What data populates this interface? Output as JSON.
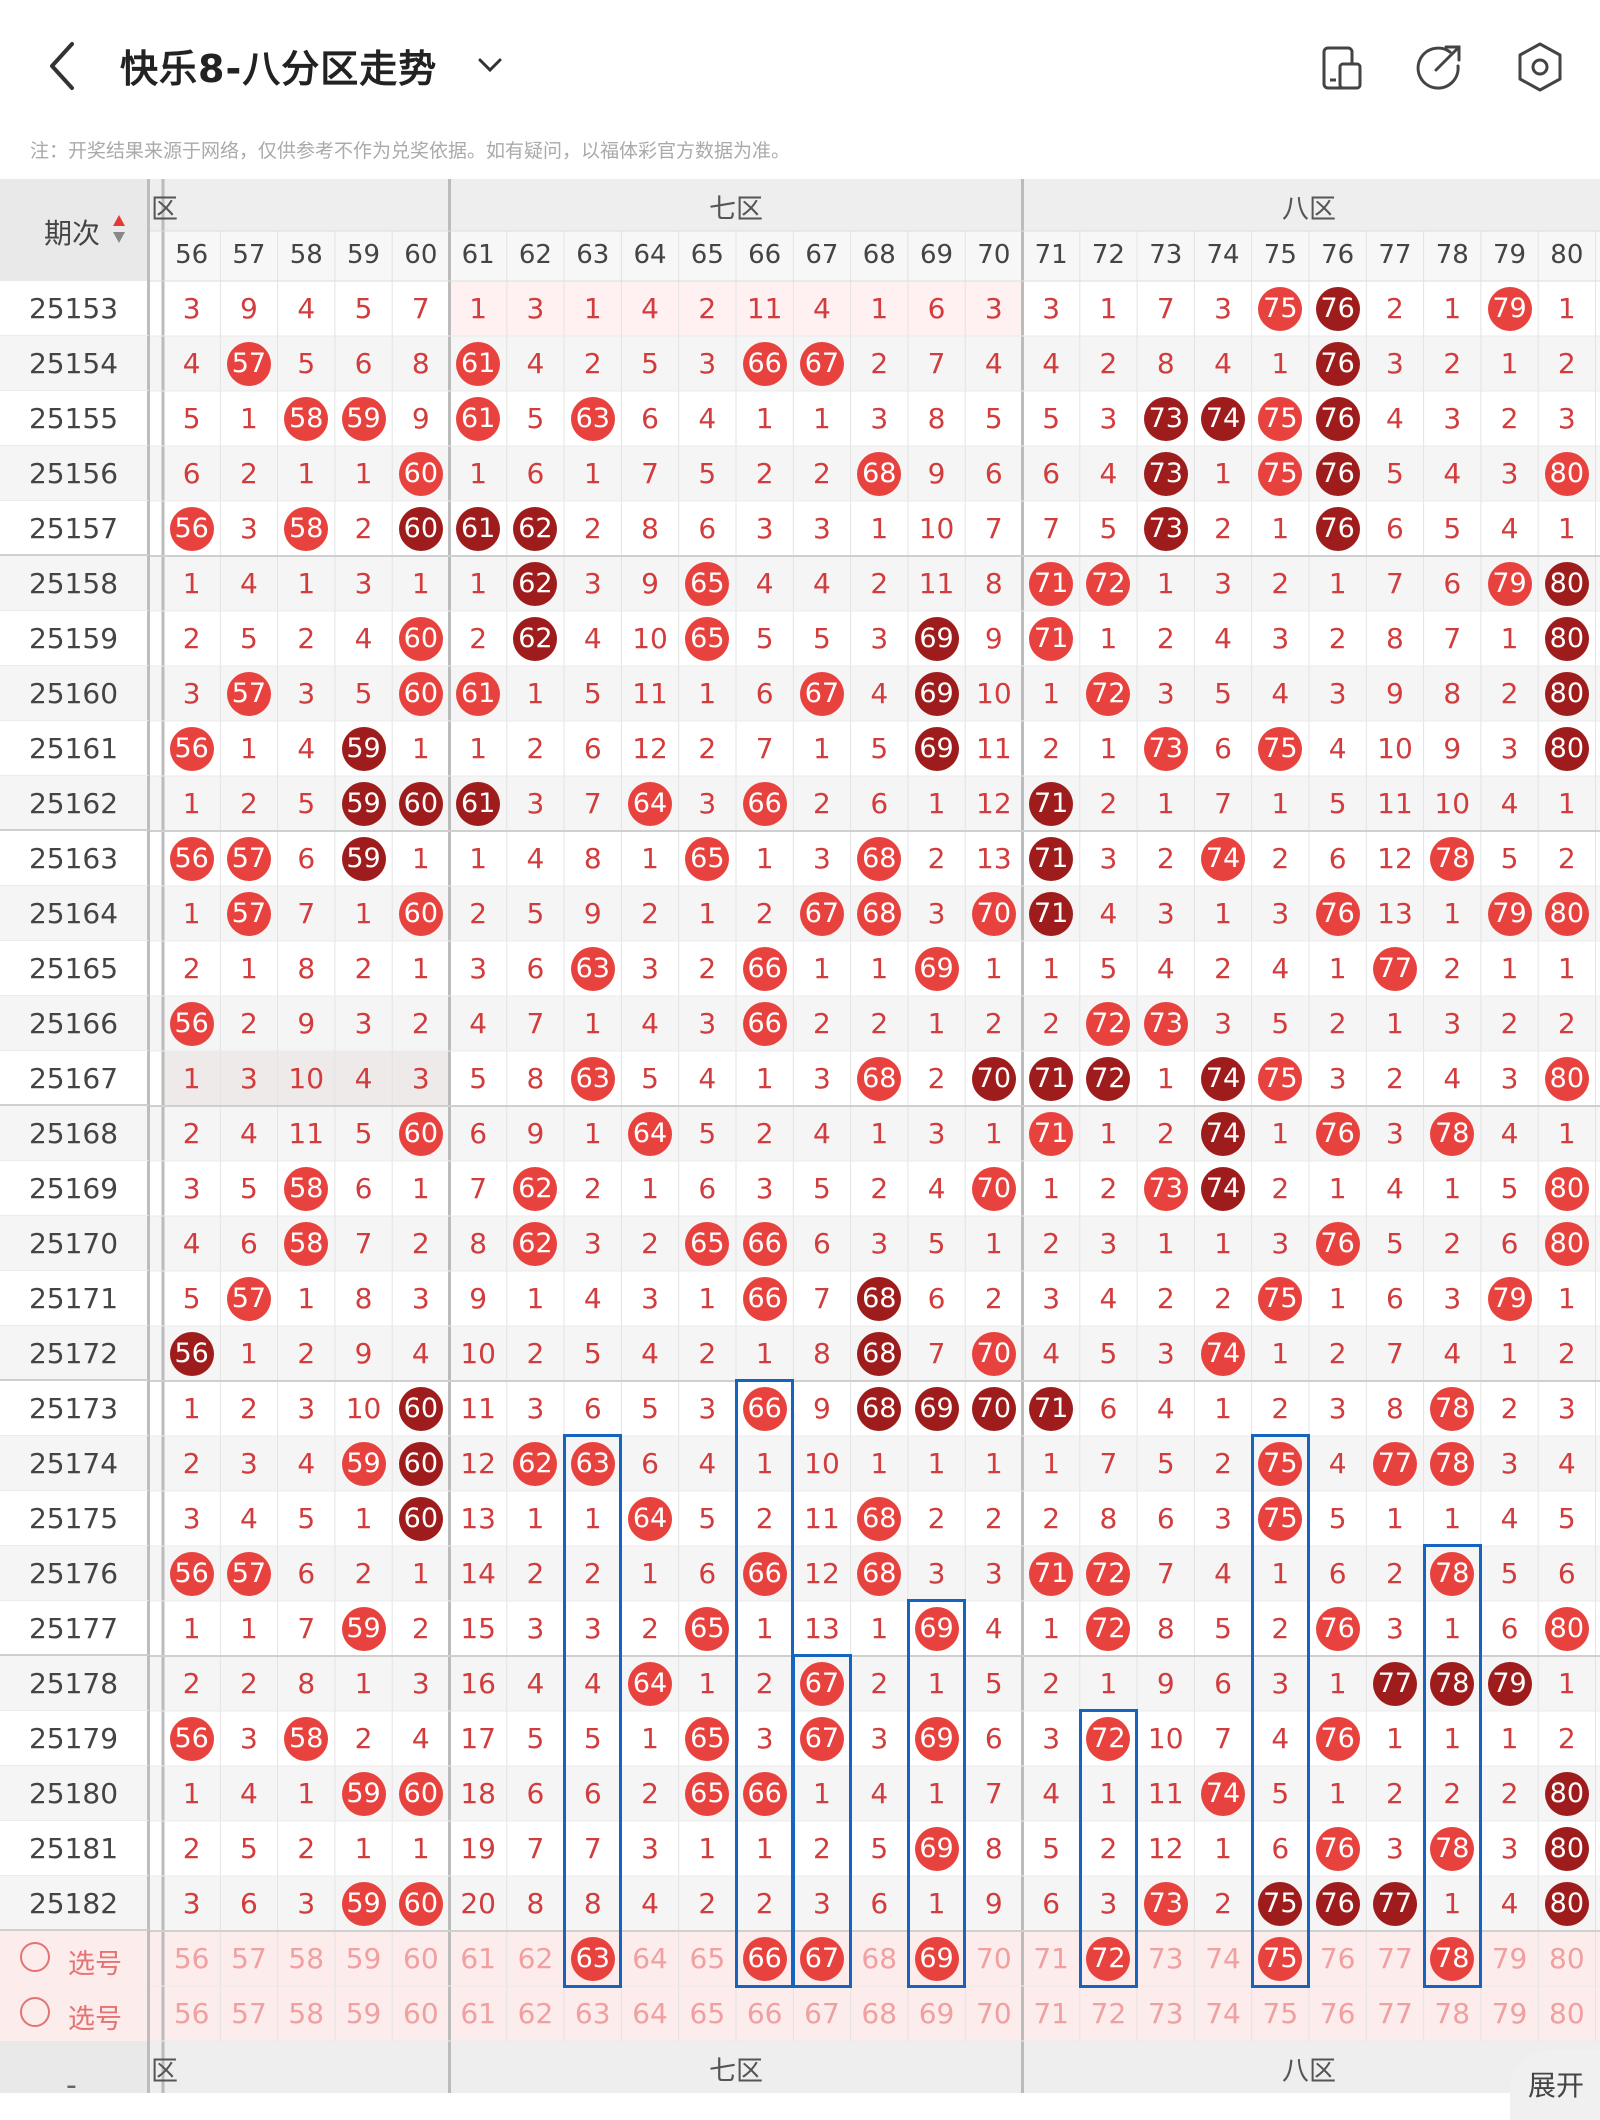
{
  "header": {
    "title": "快乐8-八分区走势",
    "back_icon": "back-arrow-icon",
    "dropdown_icon": "chevron-down-icon",
    "actions": [
      "phone-layout-icon",
      "share-icon",
      "settings-icon"
    ]
  },
  "notice": "注：开奖结果来源于网络，仅供参考不作为兑奖依据。如有疑问，以福体彩官方数据为准。",
  "table": {
    "period_header": "期次",
    "sort_icon": "sort-arrows-icon",
    "zone_labels": [
      "六区",
      "七区",
      "八区"
    ],
    "visible_zone6_label": "区",
    "columns": [
      56,
      57,
      58,
      59,
      60,
      61,
      62,
      63,
      64,
      65,
      66,
      67,
      68,
      69,
      70,
      71,
      72,
      73,
      74,
      75,
      76,
      77,
      78,
      79,
      80
    ],
    "select_label": "选号",
    "rows": [
      {
        "period": "25153",
        "cells": [
          "3",
          "9",
          "4",
          "5",
          "7",
          "1",
          "3",
          "1",
          "4",
          "2",
          "11",
          "4",
          "1",
          "6",
          "3",
          "3",
          "1",
          "7",
          "3",
          "75",
          "76",
          "2",
          "1",
          "79",
          "1"
        ],
        "dark": [
          76
        ]
      },
      {
        "period": "25154",
        "cells": [
          "4",
          "57",
          "5",
          "6",
          "8",
          "61",
          "4",
          "2",
          "5",
          "3",
          "66",
          "67",
          "2",
          "7",
          "4",
          "4",
          "2",
          "8",
          "4",
          "1",
          "76",
          "3",
          "2",
          "1",
          "2"
        ],
        "dark": [
          76
        ]
      },
      {
        "period": "25155",
        "cells": [
          "5",
          "1",
          "58",
          "59",
          "9",
          "61",
          "5",
          "63",
          "6",
          "4",
          "1",
          "1",
          "3",
          "8",
          "5",
          "5",
          "3",
          "73",
          "74",
          "75",
          "76",
          "4",
          "3",
          "2",
          "3"
        ],
        "dark": [
          73,
          74,
          76
        ]
      },
      {
        "period": "25156",
        "cells": [
          "6",
          "2",
          "1",
          "1",
          "60",
          "1",
          "6",
          "1",
          "7",
          "5",
          "2",
          "2",
          "68",
          "9",
          "6",
          "6",
          "4",
          "73",
          "1",
          "75",
          "76",
          "5",
          "4",
          "3",
          "80"
        ],
        "dark": [
          73,
          76
        ]
      },
      {
        "period": "25157",
        "cells": [
          "56",
          "3",
          "58",
          "2",
          "60",
          "61",
          "62",
          "2",
          "8",
          "6",
          "3",
          "3",
          "1",
          "10",
          "7",
          "7",
          "5",
          "73",
          "2",
          "1",
          "76",
          "6",
          "5",
          "4",
          "1"
        ],
        "dark": [
          60,
          61,
          62,
          73,
          76
        ]
      },
      {
        "period": "25158",
        "cells": [
          "1",
          "4",
          "1",
          "3",
          "1",
          "1",
          "62",
          "3",
          "9",
          "65",
          "4",
          "4",
          "2",
          "11",
          "8",
          "71",
          "72",
          "1",
          "3",
          "2",
          "1",
          "7",
          "6",
          "79",
          "80"
        ],
        "dark": [
          62,
          80
        ]
      },
      {
        "period": "25159",
        "cells": [
          "2",
          "5",
          "2",
          "4",
          "60",
          "2",
          "62",
          "4",
          "10",
          "65",
          "5",
          "5",
          "3",
          "69",
          "9",
          "71",
          "1",
          "2",
          "4",
          "3",
          "2",
          "8",
          "7",
          "1",
          "80"
        ],
        "dark": [
          62,
          69,
          80
        ]
      },
      {
        "period": "25160",
        "cells": [
          "3",
          "57",
          "3",
          "5",
          "60",
          "61",
          "1",
          "5",
          "11",
          "1",
          "6",
          "67",
          "4",
          "69",
          "10",
          "1",
          "72",
          "3",
          "5",
          "4",
          "3",
          "9",
          "8",
          "2",
          "80"
        ],
        "dark": [
          69,
          80
        ]
      },
      {
        "period": "25161",
        "cells": [
          "56",
          "1",
          "4",
          "59",
          "1",
          "1",
          "2",
          "6",
          "12",
          "2",
          "7",
          "1",
          "5",
          "69",
          "11",
          "2",
          "1",
          "73",
          "6",
          "75",
          "4",
          "10",
          "9",
          "3",
          "80"
        ],
        "dark": [
          59,
          69,
          80
        ]
      },
      {
        "period": "25162",
        "cells": [
          "1",
          "2",
          "5",
          "59",
          "60",
          "61",
          "3",
          "7",
          "64",
          "3",
          "66",
          "2",
          "6",
          "1",
          "12",
          "71",
          "2",
          "1",
          "7",
          "1",
          "5",
          "11",
          "10",
          "4",
          "1"
        ],
        "dark": [
          59,
          60,
          61,
          71
        ]
      },
      {
        "period": "25163",
        "cells": [
          "56",
          "57",
          "6",
          "59",
          "1",
          "1",
          "4",
          "8",
          "1",
          "65",
          "1",
          "3",
          "68",
          "2",
          "13",
          "71",
          "3",
          "2",
          "74",
          "2",
          "6",
          "12",
          "78",
          "5",
          "2"
        ],
        "dark": [
          59,
          71
        ]
      },
      {
        "period": "25164",
        "cells": [
          "1",
          "57",
          "7",
          "1",
          "60",
          "2",
          "5",
          "9",
          "2",
          "1",
          "2",
          "67",
          "68",
          "3",
          "70",
          "71",
          "4",
          "3",
          "1",
          "3",
          "76",
          "13",
          "1",
          "79",
          "80"
        ],
        "dark": [
          71
        ]
      },
      {
        "period": "25165",
        "cells": [
          "2",
          "1",
          "8",
          "2",
          "1",
          "3",
          "6",
          "63",
          "3",
          "2",
          "66",
          "1",
          "1",
          "69",
          "1",
          "1",
          "5",
          "4",
          "2",
          "4",
          "1",
          "77",
          "2",
          "1",
          "1"
        ],
        "dark": []
      },
      {
        "period": "25166",
        "cells": [
          "56",
          "2",
          "9",
          "3",
          "2",
          "4",
          "7",
          "1",
          "4",
          "3",
          "66",
          "2",
          "2",
          "1",
          "2",
          "2",
          "72",
          "73",
          "3",
          "5",
          "2",
          "1",
          "3",
          "2",
          "2"
        ],
        "dark": []
      },
      {
        "period": "25167",
        "cells": [
          "1",
          "3",
          "10",
          "4",
          "3",
          "5",
          "8",
          "63",
          "5",
          "4",
          "1",
          "3",
          "68",
          "2",
          "70",
          "71",
          "72",
          "1",
          "74",
          "75",
          "3",
          "2",
          "4",
          "3",
          "80"
        ],
        "dark": [
          70,
          71,
          72,
          74
        ]
      },
      {
        "period": "25168",
        "cells": [
          "2",
          "4",
          "11",
          "5",
          "60",
          "6",
          "9",
          "1",
          "64",
          "5",
          "2",
          "4",
          "1",
          "3",
          "1",
          "71",
          "1",
          "2",
          "74",
          "1",
          "76",
          "3",
          "78",
          "4",
          "1"
        ],
        "dark": [
          74
        ]
      },
      {
        "period": "25169",
        "cells": [
          "3",
          "5",
          "58",
          "6",
          "1",
          "7",
          "62",
          "2",
          "1",
          "6",
          "3",
          "5",
          "2",
          "4",
          "70",
          "1",
          "2",
          "73",
          "74",
          "2",
          "1",
          "4",
          "1",
          "5",
          "80"
        ],
        "dark": [
          74
        ]
      },
      {
        "period": "25170",
        "cells": [
          "4",
          "6",
          "58",
          "7",
          "2",
          "8",
          "62",
          "3",
          "2",
          "65",
          "66",
          "6",
          "3",
          "5",
          "1",
          "2",
          "3",
          "1",
          "1",
          "3",
          "76",
          "5",
          "2",
          "6",
          "80"
        ],
        "dark": []
      },
      {
        "period": "25171",
        "cells": [
          "5",
          "57",
          "1",
          "8",
          "3",
          "9",
          "1",
          "4",
          "3",
          "1",
          "66",
          "7",
          "68",
          "6",
          "2",
          "3",
          "4",
          "2",
          "2",
          "75",
          "1",
          "6",
          "3",
          "79",
          "1"
        ],
        "dark": [
          68
        ]
      },
      {
        "period": "25172",
        "cells": [
          "56",
          "1",
          "2",
          "9",
          "4",
          "10",
          "2",
          "5",
          "4",
          "2",
          "1",
          "8",
          "68",
          "7",
          "70",
          "4",
          "5",
          "3",
          "74",
          "1",
          "2",
          "7",
          "4",
          "1",
          "2"
        ],
        "dark": [
          56,
          68
        ]
      },
      {
        "period": "25173",
        "cells": [
          "1",
          "2",
          "3",
          "10",
          "60",
          "11",
          "3",
          "6",
          "5",
          "3",
          "66",
          "9",
          "68",
          "69",
          "70",
          "71",
          "6",
          "4",
          "1",
          "2",
          "3",
          "8",
          "78",
          "2",
          "3"
        ],
        "dark": [
          60,
          68,
          69,
          70,
          71
        ]
      },
      {
        "period": "25174",
        "cells": [
          "2",
          "3",
          "4",
          "59",
          "60",
          "12",
          "62",
          "63",
          "6",
          "4",
          "1",
          "10",
          "1",
          "1",
          "1",
          "1",
          "7",
          "5",
          "2",
          "75",
          "4",
          "77",
          "78",
          "3",
          "4"
        ],
        "dark": [
          60
        ]
      },
      {
        "period": "25175",
        "cells": [
          "3",
          "4",
          "5",
          "1",
          "60",
          "13",
          "1",
          "1",
          "64",
          "5",
          "2",
          "11",
          "68",
          "2",
          "2",
          "2",
          "8",
          "6",
          "3",
          "75",
          "5",
          "1",
          "1",
          "4",
          "5"
        ],
        "dark": [
          60
        ]
      },
      {
        "period": "25176",
        "cells": [
          "56",
          "57",
          "6",
          "2",
          "1",
          "14",
          "2",
          "2",
          "1",
          "6",
          "66",
          "12",
          "68",
          "3",
          "3",
          "71",
          "72",
          "7",
          "4",
          "1",
          "6",
          "2",
          "78",
          "5",
          "6"
        ],
        "dark": []
      },
      {
        "period": "25177",
        "cells": [
          "1",
          "1",
          "7",
          "59",
          "2",
          "15",
          "3",
          "3",
          "2",
          "65",
          "1",
          "13",
          "1",
          "69",
          "4",
          "1",
          "72",
          "8",
          "5",
          "2",
          "76",
          "3",
          "1",
          "6",
          "80"
        ],
        "dark": []
      },
      {
        "period": "25178",
        "cells": [
          "2",
          "2",
          "8",
          "1",
          "3",
          "16",
          "4",
          "4",
          "64",
          "1",
          "2",
          "67",
          "2",
          "1",
          "5",
          "2",
          "1",
          "9",
          "6",
          "3",
          "1",
          "77",
          "78",
          "79",
          "1"
        ],
        "dark": [
          77,
          78,
          79
        ]
      },
      {
        "period": "25179",
        "cells": [
          "56",
          "3",
          "58",
          "2",
          "4",
          "17",
          "5",
          "5",
          "1",
          "65",
          "3",
          "67",
          "3",
          "69",
          "6",
          "3",
          "72",
          "10",
          "7",
          "4",
          "76",
          "1",
          "1",
          "1",
          "2"
        ],
        "dark": []
      },
      {
        "period": "25180",
        "cells": [
          "1",
          "4",
          "1",
          "59",
          "60",
          "18",
          "6",
          "6",
          "2",
          "65",
          "66",
          "1",
          "4",
          "1",
          "7",
          "4",
          "1",
          "11",
          "74",
          "5",
          "1",
          "2",
          "2",
          "2",
          "80"
        ],
        "dark": [
          80
        ]
      },
      {
        "period": "25181",
        "cells": [
          "2",
          "5",
          "2",
          "1",
          "1",
          "19",
          "7",
          "7",
          "3",
          "1",
          "1",
          "2",
          "5",
          "69",
          "8",
          "5",
          "2",
          "12",
          "1",
          "6",
          "76",
          "3",
          "78",
          "3",
          "80"
        ],
        "dark": [
          80
        ]
      },
      {
        "period": "25182",
        "cells": [
          "3",
          "6",
          "3",
          "59",
          "60",
          "20",
          "8",
          "8",
          "4",
          "2",
          "2",
          "3",
          "6",
          "1",
          "9",
          "6",
          "3",
          "73",
          "2",
          "75",
          "76",
          "77",
          "1",
          "4",
          "80"
        ],
        "dark": [
          75,
          76,
          77,
          80
        ]
      }
    ],
    "select_rows": [
      {
        "label": "选号",
        "selected": [
          63,
          66,
          67,
          69,
          72,
          75,
          78
        ]
      },
      {
        "label": "选号",
        "selected": []
      }
    ]
  },
  "highlight_boxes": [
    {
      "col": 63,
      "from": "25174",
      "to": "select-1"
    },
    {
      "col": 66,
      "from": "25173",
      "to": "select-1"
    },
    {
      "col": 67,
      "from": "25178",
      "to": "select-1"
    },
    {
      "col": 69,
      "from": "25177",
      "to": "select-1"
    },
    {
      "col": 72,
      "from": "25179",
      "to": "select-1"
    },
    {
      "col": 75,
      "from": "25174",
      "to": "select-1"
    },
    {
      "col": 78,
      "from": "25176",
      "to": "select-1"
    }
  ],
  "expand_label": "展开",
  "colors": {
    "ball_red": "#e8423f",
    "ball_dark": "#9e1c1c",
    "cell_text": "#d23c3c",
    "box_blue": "#1565c0"
  }
}
